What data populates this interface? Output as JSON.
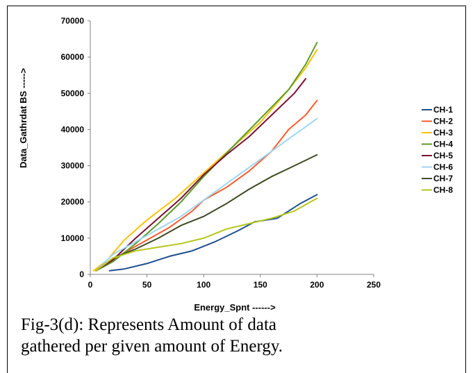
{
  "chart_data": {
    "type": "line",
    "xlabel": "Energy_Spnt ------>",
    "ylabel": "Data_Gathrdat BS ----->",
    "xlim": [
      0,
      250
    ],
    "ylim": [
      0,
      70000
    ],
    "x_ticks": [
      "0",
      "50",
      "100",
      "150",
      "200",
      "250"
    ],
    "y_ticks": [
      "0",
      "10000",
      "20000",
      "30000",
      "40000",
      "50000",
      "60000",
      "70000"
    ],
    "grid": false,
    "legend_position": "right",
    "series": [
      {
        "name": "CH-1",
        "color": "#1f4e8c",
        "x": [
          17,
          30,
          50,
          70,
          90,
          110,
          130,
          145,
          165,
          185,
          200
        ],
        "y": [
          1000,
          1500,
          3000,
          5000,
          6500,
          9000,
          12000,
          14500,
          15500,
          19500,
          22000
        ]
      },
      {
        "name": "CH-2",
        "color": "#ff5a2a",
        "x": [
          5,
          15,
          30,
          50,
          70,
          90,
          100,
          120,
          140,
          160,
          175,
          190,
          200
        ],
        "y": [
          1000,
          3000,
          6000,
          9500,
          13000,
          17500,
          20500,
          24000,
          28500,
          34000,
          40000,
          44000,
          48000
        ]
      },
      {
        "name": "CH-3",
        "color": "#ffc000",
        "x": [
          3,
          15,
          30,
          50,
          75,
          100,
          125,
          150,
          175,
          190,
          200
        ],
        "y": [
          1000,
          4000,
          9500,
          15000,
          21000,
          28000,
          35000,
          42000,
          51000,
          57000,
          62000
        ]
      },
      {
        "name": "CH-4",
        "color": "#5a9a2a",
        "x": [
          5,
          20,
          40,
          60,
          80,
          100,
          125,
          150,
          175,
          190,
          200
        ],
        "y": [
          1000,
          3500,
          8500,
          14000,
          20000,
          27000,
          35000,
          43000,
          51000,
          58000,
          64000
        ]
      },
      {
        "name": "CH-5",
        "color": "#7a0f2e",
        "x": [
          5,
          20,
          40,
          60,
          80,
          100,
          120,
          140,
          160,
          180,
          190
        ],
        "y": [
          1000,
          4000,
          10000,
          15500,
          21000,
          27500,
          33000,
          38000,
          44000,
          50000,
          54000
        ]
      },
      {
        "name": "CH-6",
        "color": "#9dd6f5",
        "x": [
          5,
          20,
          40,
          60,
          80,
          100,
          120,
          140,
          160,
          180,
          200
        ],
        "y": [
          1000,
          5500,
          9000,
          12500,
          16000,
          20500,
          25000,
          29500,
          34000,
          38500,
          43000
        ]
      },
      {
        "name": "CH-7",
        "color": "#3c4a22",
        "x": [
          5,
          20,
          40,
          60,
          80,
          100,
          120,
          140,
          160,
          180,
          200
        ],
        "y": [
          1000,
          4500,
          7000,
          10000,
          13500,
          16000,
          19500,
          23500,
          27000,
          30000,
          33000
        ]
      },
      {
        "name": "CH-8",
        "color": "#b4c61a",
        "x": [
          5,
          20,
          40,
          60,
          80,
          100,
          120,
          140,
          160,
          180,
          200
        ],
        "y": [
          1000,
          4500,
          6500,
          7500,
          8500,
          10000,
          12500,
          14000,
          15500,
          17500,
          21000
        ]
      }
    ]
  },
  "caption": {
    "line1": "Fig-3(d): Represents Amount of data",
    "line2": "gathered per given amount of Energy."
  }
}
